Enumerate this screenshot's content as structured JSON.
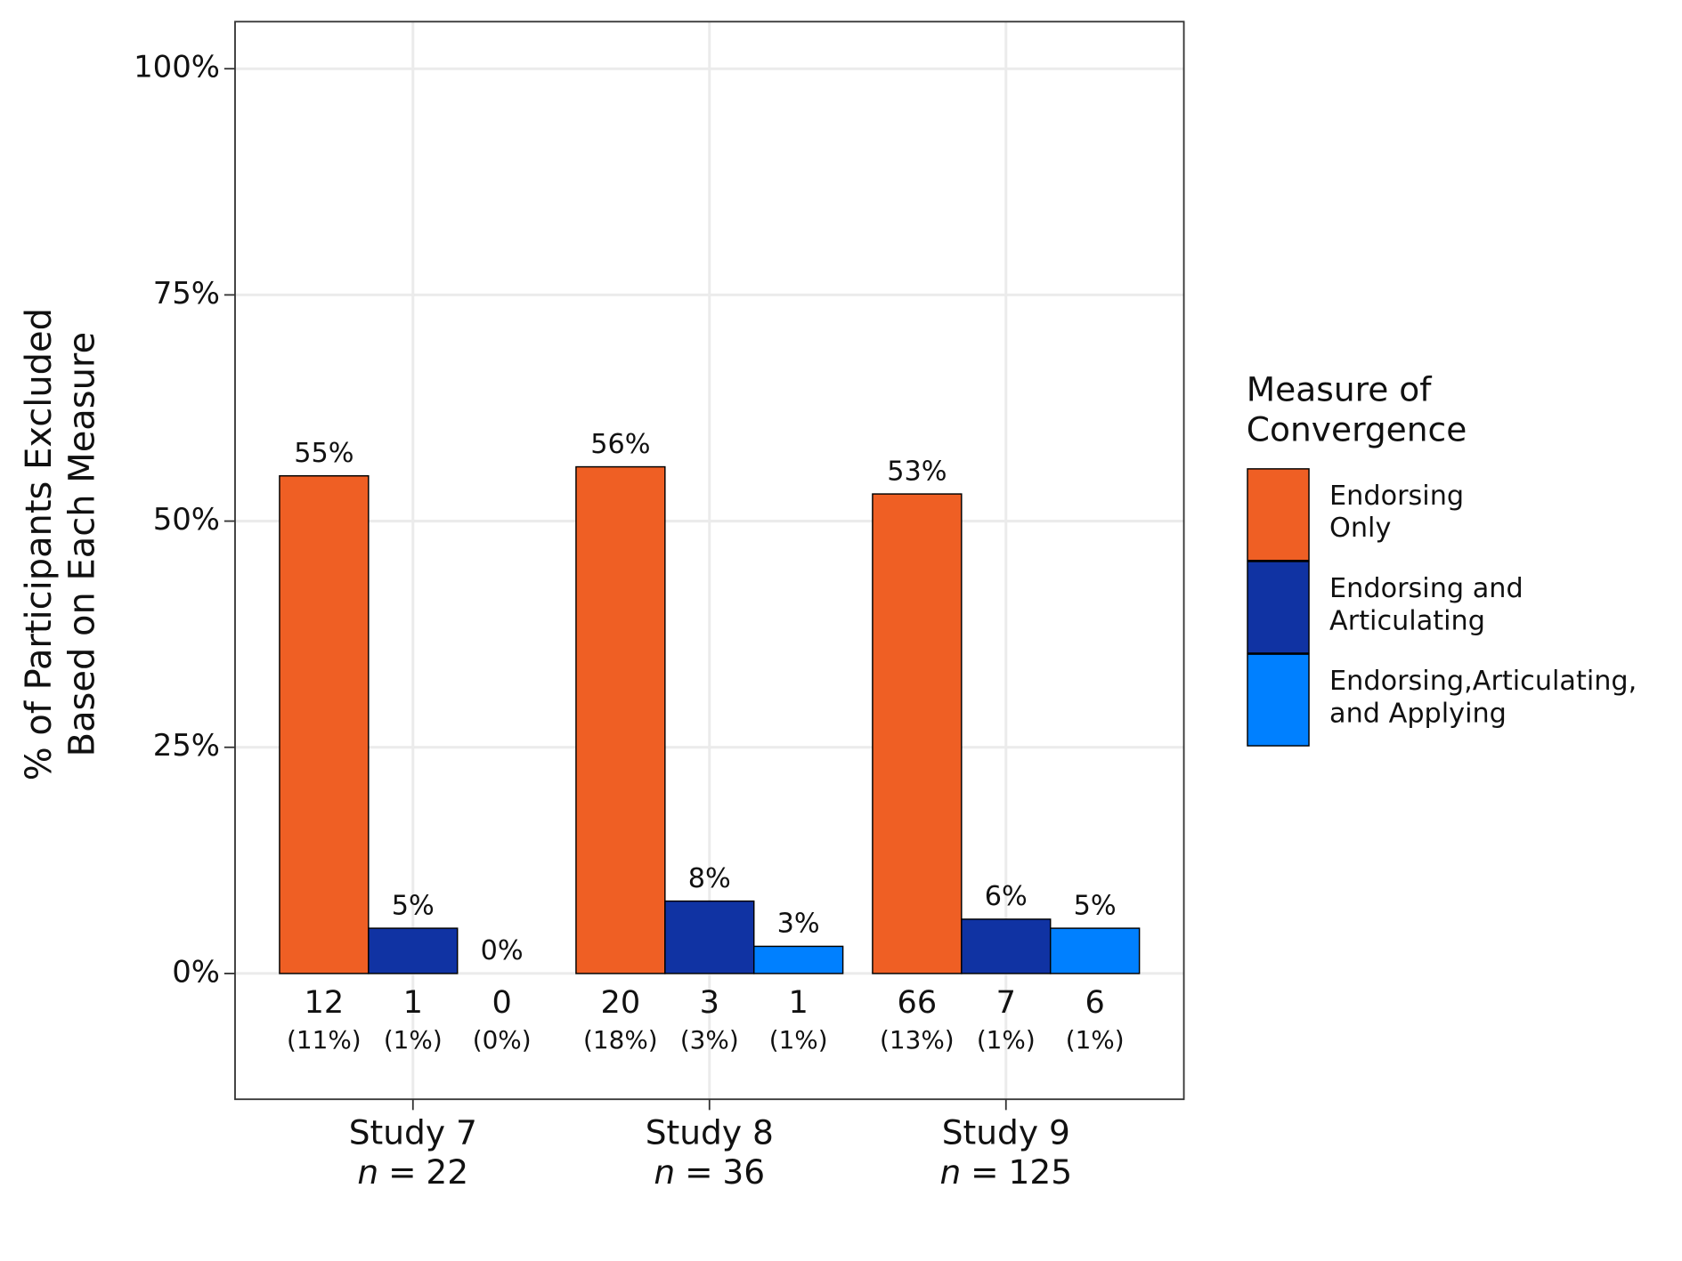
{
  "chart_data": {
    "type": "bar",
    "y_label": "% of Participants Excluded\nBased on Each Measure",
    "categories": [
      "Study 7",
      "Study 8",
      "Study 9"
    ],
    "sample_size_symbol": "n",
    "sample_size_sign": "=",
    "sample_sizes": [
      22,
      36,
      125
    ],
    "legend_title": "Measure of\nConvergence",
    "series": [
      {
        "name": "Endorsing\nOnly",
        "color": "#ef5f24",
        "values": [
          55,
          56,
          53
        ],
        "value_labels": [
          "55%",
          "56%",
          "53%"
        ],
        "counts": [
          12,
          20,
          66
        ],
        "count_shares": [
          "(11%)",
          "(18%)",
          "(13%)"
        ]
      },
      {
        "name": "Endorsing and\nArticulating",
        "color": "#1033a3",
        "values": [
          5,
          8,
          6
        ],
        "value_labels": [
          "5%",
          "8%",
          "6%"
        ],
        "counts": [
          1,
          3,
          7
        ],
        "count_shares": [
          "(1%)",
          "(3%)",
          "(1%)"
        ]
      },
      {
        "name": "Endorsing,Articulating,\nand Applying",
        "color": "#0080ff",
        "values": [
          0,
          3,
          5
        ],
        "value_labels": [
          "0%",
          "3%",
          "5%"
        ],
        "counts": [
          0,
          1,
          6
        ],
        "count_shares": [
          "(0%)",
          "(1%)",
          "(1%)"
        ]
      }
    ],
    "ylim": [
      -13.9,
      105.2
    ],
    "yticks": [
      {
        "value": 0,
        "label": "0%"
      },
      {
        "value": 25,
        "label": "25%"
      },
      {
        "value": 50,
        "label": "50%"
      },
      {
        "value": 75,
        "label": "75%"
      },
      {
        "value": 100,
        "label": "100%"
      }
    ],
    "grid": true,
    "legend_position": "right"
  }
}
